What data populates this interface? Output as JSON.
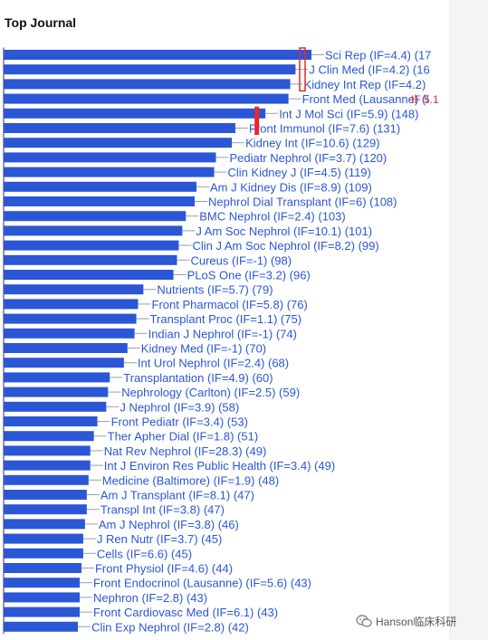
{
  "chart_data": {
    "type": "bar",
    "orientation": "horizontal",
    "title": "Top Journal",
    "bar_color": "#2b56d6",
    "label_color": "#2b56d6",
    "highlight_color": "#e8282d",
    "categories": [
      "Sci Rep (IF=4.4) (17",
      "J Clin Med (IF=4.2) (16",
      "Kidney Int Rep (IF=4.2)",
      "Front Med (Lausanne) (I",
      "Int J Mol Sci (IF=5.9) (148)",
      "Front Immunol (IF=7.6) (131)",
      "Kidney Int (IF=10.6) (129)",
      "Pediatr Nephrol (IF=3.7) (120)",
      "Clin Kidney J (IF=4.5) (119)",
      "Am J Kidney Dis (IF=8.9) (109)",
      "Nephrol Dial Transplant (IF=6) (108)",
      "BMC Nephrol (IF=2.4) (103)",
      "J Am Soc Nephrol (IF=10.1) (101)",
      "Clin J Am Soc Nephrol (IF=8.2) (99)",
      "Cureus (IF=-1) (98)",
      "PLoS One (IF=3.2) (96)",
      "Nutrients (IF=5.7) (79)",
      "Front Pharmacol (IF=5.8) (76)",
      "Transplant Proc (IF=1.1) (75)",
      "Indian J Nephrol (IF=-1) (74)",
      "Kidney Med (IF=-1) (70)",
      "Int Urol Nephrol (IF=2.4) (68)",
      "Transplantation (IF=4.9) (60)",
      "Nephrology (Carlton) (IF=2.5) (59)",
      "J Nephrol (IF=3.9) (58)",
      "Front Pediatr (IF=3.4) (53)",
      "Ther Apher Dial (IF=1.8) (51)",
      "Nat Rev Nephrol (IF=28.3) (49)",
      "Int J Environ Res Public Health (IF=3.4) (49)",
      "Medicine (Baltimore) (IF=1.9) (48)",
      "Am J Transplant (IF=8.1) (47)",
      "Transpl Int (IF=3.8) (47)",
      "Am J Nephrol (IF=3.8) (46)",
      "J Ren Nutr (IF=3.7) (45)",
      "Cells (IF=6.6) (45)",
      "Front Physiol (IF=4.6) (44)",
      "Front Endocrinol (Lausanne) (IF=5.6) (43)",
      "Nephron (IF=2.8) (43)",
      "Front Cardiovasc Med (IF=6.1) (43)",
      "Clin Exp Nephrol (IF=2.8) (42)"
    ],
    "values": [
      174,
      165,
      162,
      161,
      148,
      131,
      129,
      120,
      119,
      109,
      108,
      103,
      101,
      99,
      98,
      96,
      79,
      76,
      75,
      74,
      70,
      68,
      60,
      59,
      58,
      53,
      51,
      49,
      49,
      48,
      47,
      47,
      46,
      45,
      45,
      44,
      43,
      43,
      43,
      42
    ],
    "xlim": [
      0,
      174
    ],
    "grid": false,
    "legend": "none",
    "annotations": [
      {
        "text": "IF 5.1",
        "category_index": 3
      }
    ],
    "markers": [
      {
        "category_index": 0,
        "style": "outline-box",
        "spans": 3
      },
      {
        "category_index": 4,
        "style": "solid-box",
        "spans": 2
      }
    ]
  },
  "watermark": {
    "text": "Hanson临床科研",
    "icon": "wechat-icon"
  }
}
